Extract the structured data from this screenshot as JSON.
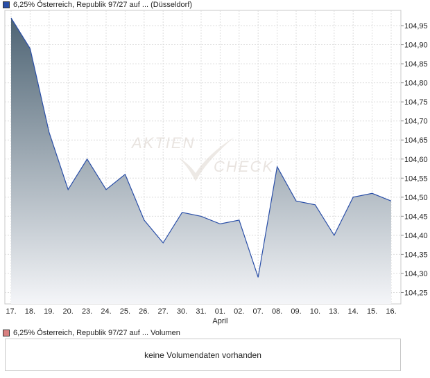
{
  "legend": {
    "price_series": "6,25% Österreich, Republik 97/27 auf ... (Düsseldorf)",
    "price_color": "#2a4fa8",
    "volume_series": "6,25% Österreich, Republik 97/27 auf ... Volumen",
    "volume_color": "#d98080"
  },
  "volume_panel": {
    "message": "keine Volumendaten vorhanden"
  },
  "watermark": {
    "line1": "AKTIEN",
    "line2": "CHECK"
  },
  "chart_data": {
    "type": "area",
    "categories": [
      "17.",
      "18.",
      "19.",
      "20.",
      "23.",
      "24.",
      "25.",
      "26.",
      "27.",
      "30.",
      "31.",
      "01.",
      "02.",
      "07.",
      "08.",
      "09.",
      "10.",
      "13.",
      "14.",
      "15.",
      "16."
    ],
    "month_label": "April",
    "month_label_index": 11,
    "series": [
      {
        "values": [
          104.97,
          104.89,
          104.67,
          104.52,
          104.6,
          104.52,
          104.56,
          104.44,
          104.38,
          104.46,
          104.45,
          104.43,
          104.44,
          104.29,
          104.58,
          104.49,
          104.48,
          104.4,
          104.5,
          104.51,
          104.49
        ],
        "color": "#2a4fa8"
      }
    ],
    "yticks": [
      "104,25",
      "104,30",
      "104,35",
      "104,40",
      "104,45",
      "104,50",
      "104,55",
      "104,60",
      "104,65",
      "104,70",
      "104,75",
      "104,80",
      "104,85",
      "104,90",
      "104,95"
    ],
    "ylim": [
      104.22,
      104.99
    ],
    "grid": true,
    "fill_top_color": "#4e6474",
    "fill_bottom_color": "#f4f5f8"
  }
}
